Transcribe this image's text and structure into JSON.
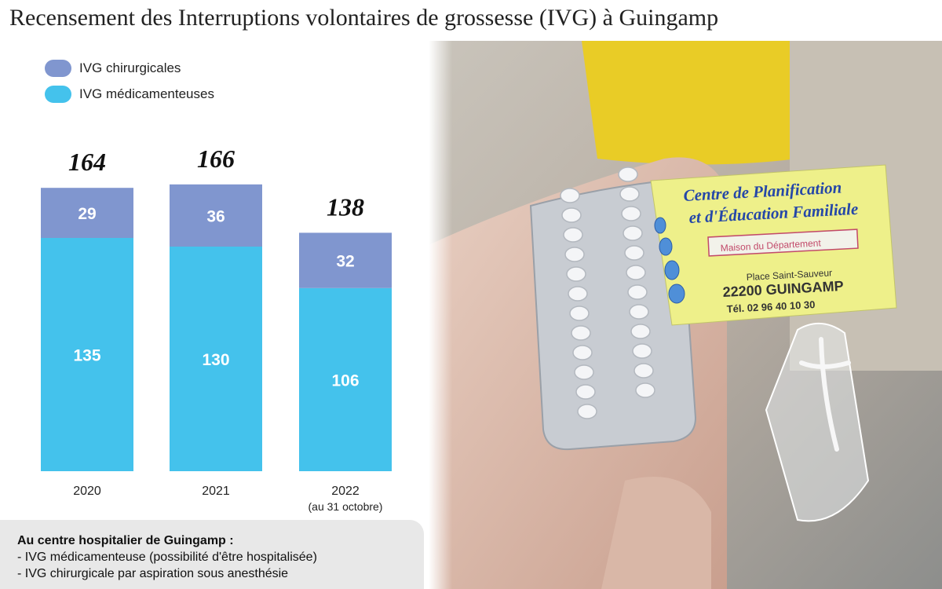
{
  "title": "Recensement des Interruptions volontaires de grossesse (IVG) à Guingamp",
  "colors": {
    "chirurgicales": "#8096cf",
    "medicamenteuses": "#44c2ec"
  },
  "chart_data": {
    "type": "bar",
    "stacked": true,
    "categories": [
      "2020",
      "2021",
      "2022"
    ],
    "category_notes": [
      "",
      "",
      "(au 31 octobre)"
    ],
    "series": [
      {
        "name": "IVG médicamenteuses",
        "values": [
          135,
          130,
          106
        ]
      },
      {
        "name": "IVG chirurgicales",
        "values": [
          29,
          36,
          32
        ]
      }
    ],
    "totals": [
      164,
      166,
      138
    ],
    "legend_position": "top-left",
    "grid": false
  },
  "note": {
    "title": "Au centre hospitalier de Guingamp :",
    "lines": [
      "- IVG médicamenteuse (possibilité d'être hospitalisée)",
      "- IVG chirurgicale par aspiration sous anesthésie"
    ]
  },
  "photo": {
    "card_line1": "Centre de Planification",
    "card_line2": "et d'Éducation Familiale",
    "card_stamp": "Maison du Département",
    "card_address": "Place Saint-Sauveur",
    "card_city": "22200 GUINGAMP",
    "card_phone": "Tél. 02 96 40 10 30"
  }
}
